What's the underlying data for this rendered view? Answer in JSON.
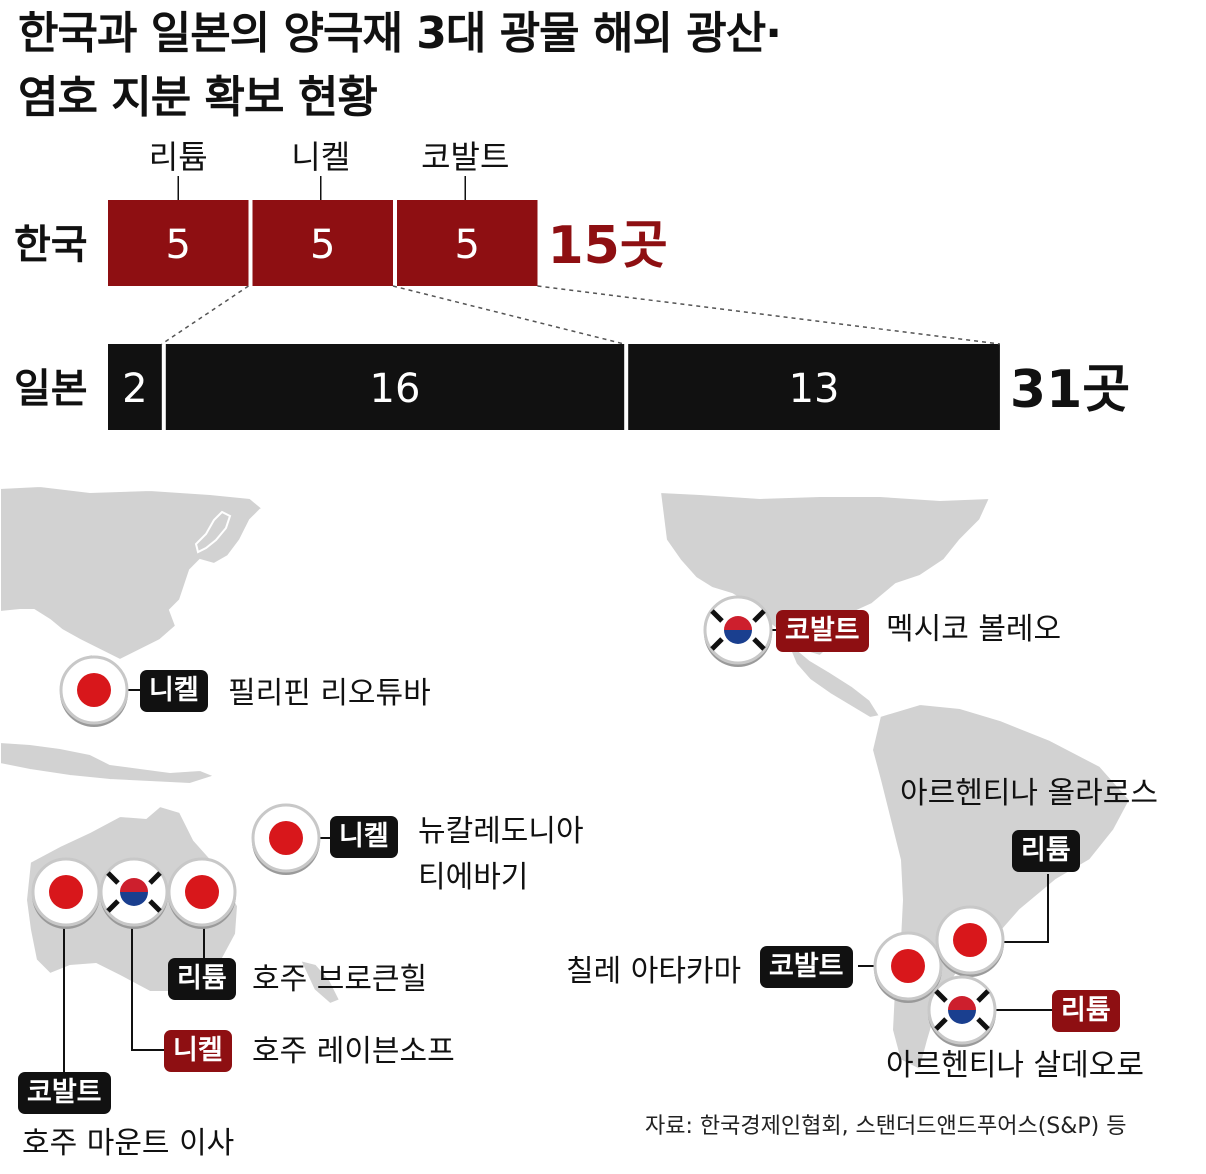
{
  "title": {
    "line1": "한국과 일본의 양극재 3대 광물 해외 광산·",
    "line2": "염호 지분 확보 현황"
  },
  "chart_data": {
    "type": "bar",
    "orientation": "horizontal-stacked",
    "categories": [
      "한국",
      "일본"
    ],
    "series": [
      {
        "name": "리튬",
        "values": [
          5,
          2
        ]
      },
      {
        "name": "니켈",
        "values": [
          5,
          16
        ]
      },
      {
        "name": "코발트",
        "values": [
          5,
          13
        ]
      }
    ],
    "totals": [
      "15곳",
      "31곳"
    ],
    "colors": {
      "korea": "#8e0f12",
      "japan": "#111111",
      "total_korea": "#8e0f12"
    }
  },
  "map": {
    "pins": [
      {
        "id": "mexico",
        "flags": [
          "korea"
        ],
        "badge": "코발트",
        "badge_color": "red",
        "label": "멕시코 볼레오"
      },
      {
        "id": "philippines",
        "flags": [
          "japan"
        ],
        "badge": "니켈",
        "badge_color": "black",
        "label": "필리핀 리오튜바"
      },
      {
        "id": "new-caledonia",
        "flags": [
          "japan"
        ],
        "badge": "니켈",
        "badge_color": "black",
        "label": "뉴칼레도니아 티에바기",
        "label_line1": "뉴칼레도니아",
        "label_line2": "티에바기"
      },
      {
        "id": "brokenhill",
        "flags": [
          "japan"
        ],
        "badge": "리튬",
        "badge_color": "black",
        "label": "호주 브로큰힐"
      },
      {
        "id": "ravensthorpe",
        "flags": [
          "korea"
        ],
        "badge": "니켈",
        "badge_color": "red",
        "label": "호주 레이븐소프"
      },
      {
        "id": "mount-isa",
        "flags": [
          "japan"
        ],
        "badge": "코발트",
        "badge_color": "black",
        "label": "호주 마운트 이사"
      },
      {
        "id": "atacama",
        "flags": [
          "japan"
        ],
        "badge": "코발트",
        "badge_color": "black",
        "label": "칠레 아타카마"
      },
      {
        "id": "olaroz",
        "flags": [
          "japan"
        ],
        "badge": "리튬",
        "badge_color": "black",
        "label": "아르헨티나 올라로스"
      },
      {
        "id": "salde",
        "flags": [
          "korea"
        ],
        "badge": "리튬",
        "badge_color": "red",
        "label": "아르헨티나 살데오로"
      }
    ]
  },
  "source": "자료: 한국경제인협회, 스탠더드앤드푸어스(S&P) 등"
}
